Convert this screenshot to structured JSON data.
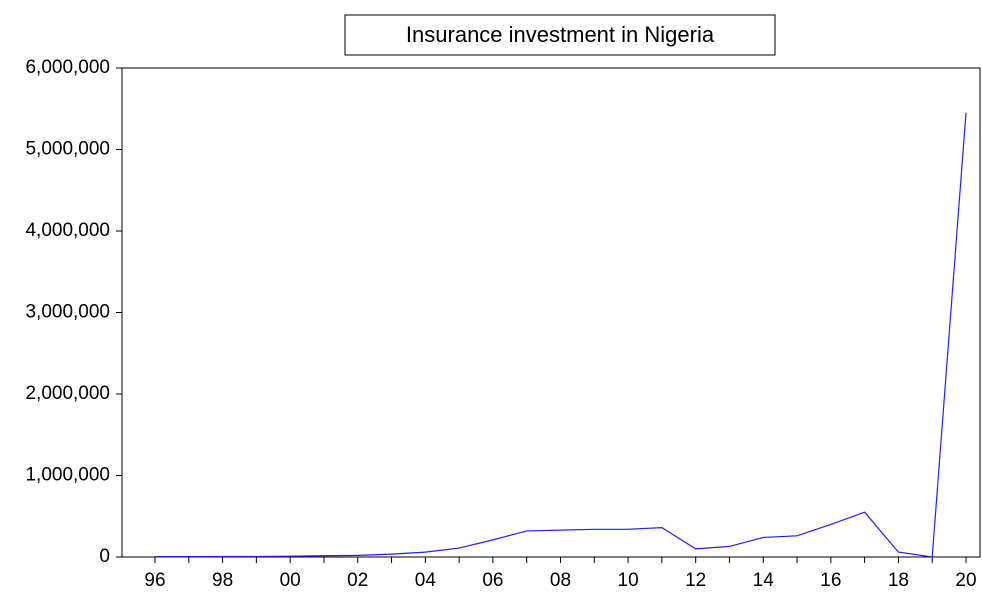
{
  "chart_data": {
    "type": "line",
    "title": "Insurance investment in Nigeria",
    "categories": [
      "96",
      null,
      "98",
      null,
      "00",
      null,
      "02",
      null,
      "04",
      null,
      "06",
      null,
      "08",
      null,
      "10",
      null,
      "12",
      null,
      "14",
      null,
      "16",
      null,
      "18",
      null,
      "20"
    ],
    "values": [
      5000,
      5000,
      6000,
      7000,
      10000,
      15000,
      20000,
      35000,
      60000,
      110000,
      210000,
      320000,
      330000,
      340000,
      340000,
      360000,
      100000,
      130000,
      240000,
      260000,
      400000,
      550000,
      60000,
      0,
      5450000
    ],
    "color": "#1f1fff",
    "ylim": [
      0,
      6000000
    ],
    "yticks": [
      {
        "value": 0,
        "label": "0"
      },
      {
        "value": 1000000,
        "label": "1,000,000"
      },
      {
        "value": 2000000,
        "label": "2,000,000"
      },
      {
        "value": 3000000,
        "label": "3,000,000"
      },
      {
        "value": 4000000,
        "label": "4,000,000"
      },
      {
        "value": 5000000,
        "label": "5,000,000"
      },
      {
        "value": 6000000,
        "label": "6,000,000"
      }
    ],
    "grid": false
  }
}
